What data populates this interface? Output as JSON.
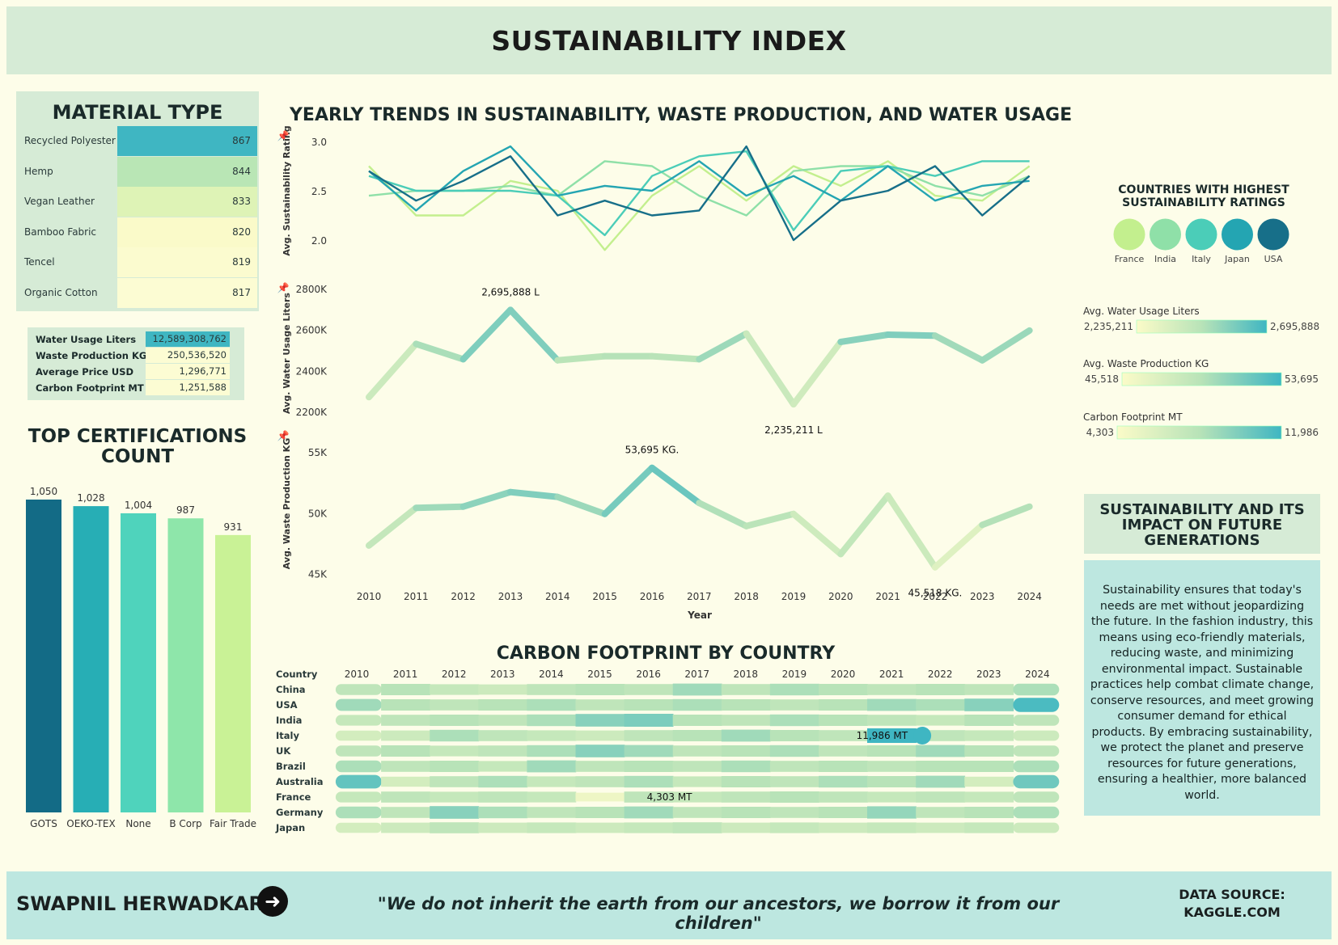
{
  "title": "SUSTAINABILITY INDEX",
  "material_type": {
    "title": "MATERIAL TYPE",
    "rows": [
      {
        "label": "Recycled Polyester",
        "value": "867",
        "color": "#3fb6c2"
      },
      {
        "label": "Hemp",
        "value": "844",
        "color": "#b9e6b5"
      },
      {
        "label": "Vegan Leather",
        "value": "833",
        "color": "#def3b6"
      },
      {
        "label": "Bamboo Fabric",
        "value": "820",
        "color": "#fafac9"
      },
      {
        "label": "Tencel",
        "value": "819",
        "color": "#fbfbcf"
      },
      {
        "label": "Organic Cotton",
        "value": "817",
        "color": "#fcfcd3"
      }
    ]
  },
  "kpis": [
    {
      "label": "Water Usage Liters",
      "value": "12,589,308,762",
      "color": "#3fb6c2"
    },
    {
      "label": "Waste Production KG",
      "value": "250,536,520",
      "color": "#fcfcd3"
    },
    {
      "label": "Average Price USD",
      "value": "1,296,771",
      "color": "#fcfcd3"
    },
    {
      "label": "Carbon Footprint MT",
      "value": "1,251,588",
      "color": "#fcfcd3"
    }
  ],
  "certifications": {
    "title": "TOP CERTIFICATIONS COUNT",
    "categories": [
      "GOTS",
      "OEKO-TEX",
      "None",
      "B Corp",
      "Fair Trade"
    ],
    "values": [
      1050,
      1028,
      1004,
      987,
      931
    ],
    "labels": [
      "1,050",
      "1,028",
      "1,004",
      "987",
      "931"
    ],
    "colors": [
      "#136b86",
      "#27aeb5",
      "#4fd3bc",
      "#8ee6aa",
      "#c9f296"
    ]
  },
  "trends": {
    "title": "YEARLY TRENDS IN SUSTAINABILITY, WASTE PRODUCTION, AND WATER USAGE",
    "xlabel": "Year",
    "years": [
      "2010",
      "2011",
      "2012",
      "2013",
      "2014",
      "2015",
      "2016",
      "2017",
      "2018",
      "2019",
      "2020",
      "2021",
      "2022",
      "2023",
      "2024"
    ]
  },
  "chart_data": [
    {
      "type": "line",
      "ylabel": "Avg. Sustainability Rating",
      "ylim": [
        1.8,
        3.1
      ],
      "yticks": [
        "3.0",
        "2.5",
        "2.0"
      ],
      "yticks_values": [
        3.0,
        2.5,
        2.0
      ],
      "x": [
        2010,
        2011,
        2012,
        2013,
        2014,
        2015,
        2016,
        2017,
        2018,
        2019,
        2020,
        2021,
        2022,
        2023,
        2024
      ],
      "series": [
        {
          "name": "France",
          "color": "#c3ef8e",
          "values": [
            2.75,
            2.25,
            2.25,
            2.6,
            2.5,
            1.9,
            2.45,
            2.75,
            2.4,
            2.75,
            2.55,
            2.8,
            2.45,
            2.4,
            2.75
          ]
        },
        {
          "name": "India",
          "color": "#8fe0a8",
          "values": [
            2.45,
            2.5,
            2.5,
            2.55,
            2.45,
            2.8,
            2.75,
            2.45,
            2.25,
            2.7,
            2.75,
            2.75,
            2.55,
            2.45,
            2.65
          ]
        },
        {
          "name": "Italy",
          "color": "#4bcdb8",
          "values": [
            2.65,
            2.5,
            2.5,
            2.5,
            2.45,
            2.05,
            2.65,
            2.85,
            2.9,
            2.1,
            2.7,
            2.75,
            2.65,
            2.8,
            2.8
          ]
        },
        {
          "name": "Japan",
          "color": "#24a5b2",
          "values": [
            2.7,
            2.3,
            2.7,
            2.95,
            2.45,
            2.55,
            2.5,
            2.8,
            2.45,
            2.65,
            2.4,
            2.75,
            2.4,
            2.55,
            2.6
          ]
        },
        {
          "name": "USA",
          "color": "#176f89",
          "values": [
            2.7,
            2.4,
            2.6,
            2.85,
            2.25,
            2.4,
            2.25,
            2.3,
            2.95,
            2.0,
            2.4,
            2.5,
            2.75,
            2.25,
            2.65
          ]
        }
      ]
    },
    {
      "type": "line",
      "ylabel": "Avg. Water Usage Liters",
      "ylim": [
        2200000,
        2800000
      ],
      "yticks": [
        "2800K",
        "2600K",
        "2400K",
        "2200K"
      ],
      "yticks_values": [
        2800000,
        2600000,
        2400000,
        2200000
      ],
      "x": [
        2010,
        2011,
        2012,
        2013,
        2014,
        2015,
        2016,
        2017,
        2018,
        2019,
        2020,
        2021,
        2022,
        2023,
        2024
      ],
      "values": [
        2270000,
        2530000,
        2455000,
        2695888,
        2450000,
        2470000,
        2470000,
        2455000,
        2580000,
        2235211,
        2540000,
        2575000,
        2570000,
        2450000,
        2595000
      ],
      "annotations": [
        {
          "year": 2013,
          "text": "2,695,888 L",
          "pos": "above"
        },
        {
          "year": 2019,
          "text": "2,235,211 L",
          "pos": "below"
        }
      ]
    },
    {
      "type": "line",
      "ylabel": "Avg. Waste Production KG",
      "ylim": [
        44500,
        56000
      ],
      "yticks": [
        "55K",
        "50K",
        "45K"
      ],
      "yticks_values": [
        55000,
        50000,
        45000
      ],
      "x": [
        2010,
        2011,
        2012,
        2013,
        2014,
        2015,
        2016,
        2017,
        2018,
        2019,
        2020,
        2021,
        2022,
        2023,
        2024
      ],
      "values": [
        47300,
        50400,
        50500,
        51700,
        51300,
        49900,
        53695,
        50800,
        48900,
        49900,
        46600,
        51400,
        45518,
        49000,
        50500
      ],
      "annotations": [
        {
          "year": 2016,
          "text": "53,695 KG.",
          "pos": "above"
        },
        {
          "year": 2022,
          "text": "45,518 KG.",
          "pos": "below"
        }
      ]
    },
    {
      "type": "heatmap",
      "title": "CARBON FOOTPRINT BY COUNTRY",
      "row_header": "Country",
      "years": [
        "2010",
        "2011",
        "2012",
        "2013",
        "2014",
        "2015",
        "2016",
        "2017",
        "2018",
        "2019",
        "2020",
        "2021",
        "2022",
        "2023",
        "2024"
      ],
      "countries": [
        "China",
        "USA",
        "India",
        "Italy",
        "UK",
        "Brazil",
        "Australia",
        "France",
        "Germany",
        "Japan"
      ],
      "range": [
        4303,
        11986
      ],
      "values": [
        [
          0.45,
          0.5,
          0.4,
          0.35,
          0.45,
          0.5,
          0.45,
          0.6,
          0.45,
          0.55,
          0.5,
          0.45,
          0.5,
          0.45,
          0.55
        ],
        [
          0.6,
          0.5,
          0.45,
          0.5,
          0.55,
          0.45,
          0.5,
          0.55,
          0.5,
          0.45,
          0.5,
          0.6,
          0.55,
          0.7,
          0.95
        ],
        [
          0.4,
          0.45,
          0.5,
          0.45,
          0.55,
          0.7,
          0.75,
          0.5,
          0.45,
          0.55,
          0.5,
          0.45,
          0.4,
          0.5,
          0.45
        ],
        [
          0.3,
          0.35,
          0.55,
          0.45,
          0.4,
          0.35,
          0.45,
          0.5,
          0.6,
          0.5,
          0.45,
          1.0,
          0.45,
          0.4,
          0.35
        ],
        [
          0.45,
          0.5,
          0.4,
          0.45,
          0.55,
          0.7,
          0.6,
          0.45,
          0.5,
          0.55,
          0.45,
          0.5,
          0.6,
          0.5,
          0.45
        ],
        [
          0.55,
          0.45,
          0.5,
          0.4,
          0.6,
          0.45,
          0.5,
          0.45,
          0.55,
          0.45,
          0.5,
          0.45,
          0.5,
          0.5,
          0.55
        ],
        [
          0.85,
          0.3,
          0.45,
          0.55,
          0.4,
          0.45,
          0.55,
          0.4,
          0.5,
          0.45,
          0.55,
          0.5,
          0.6,
          0.3,
          0.8
        ],
        [
          0.4,
          0.45,
          0.4,
          0.45,
          0.4,
          0.1,
          0.45,
          0.4,
          0.45,
          0.5,
          0.45,
          0.4,
          0.45,
          0.4,
          0.45
        ],
        [
          0.55,
          0.45,
          0.7,
          0.55,
          0.45,
          0.5,
          0.6,
          0.45,
          0.5,
          0.45,
          0.5,
          0.65,
          0.45,
          0.5,
          0.55
        ],
        [
          0.3,
          0.35,
          0.45,
          0.35,
          0.4,
          0.35,
          0.4,
          0.45,
          0.35,
          0.4,
          0.35,
          0.4,
          0.35,
          0.4,
          0.35
        ]
      ],
      "annotations": [
        {
          "country": "Italy",
          "year": "2021",
          "text": "11,986 MT"
        },
        {
          "country": "France",
          "year": "2016",
          "text": "4,303 MT"
        }
      ]
    }
  ],
  "legend": {
    "title": "COUNTRIES WITH HIGHEST SUSTAINABILITY RATINGS",
    "items": [
      {
        "name": "France",
        "color": "#c3ef8e"
      },
      {
        "name": "India",
        "color": "#8fe0a8"
      },
      {
        "name": "Italy",
        "color": "#4bcdb8"
      },
      {
        "name": "Japan",
        "color": "#24a5b2"
      },
      {
        "name": "USA",
        "color": "#176f89"
      }
    ]
  },
  "gradient_legends": [
    {
      "title": "Avg. Water Usage Liters",
      "min": "2,235,211",
      "max": "2,695,888"
    },
    {
      "title": "Avg. Waste Production KG",
      "min": "45,518",
      "max": "53,695"
    },
    {
      "title": "Carbon Footprint MT",
      "min": "4,303",
      "max": "11,986"
    }
  ],
  "impact": {
    "title": "SUSTAINABILITY AND ITS IMPACT ON FUTURE GENERATIONS",
    "text": "Sustainability ensures that today's needs are met without jeopardizing the future. In the fashion industry, this means using eco-friendly materials, reducing waste, and minimizing environmental impact. Sustainable practices help combat climate change, conserve resources, and meet growing consumer demand for ethical products. By embracing sustainability, we protect the planet and preserve resources for future generations, ensuring a healthier, more balanced world."
  },
  "footer": {
    "author": "SWAPNIL HERWADKAR",
    "quote": "\"We do not inherit the earth from our ancestors, we borrow it from our children\"",
    "source": "DATA SOURCE: KAGGLE.COM"
  },
  "colors": {
    "light": "#f8fbc4",
    "teal": "#3fb6c2",
    "dark": "#176f89",
    "panel": "#d6ebd6",
    "background": "#fdfde9"
  }
}
